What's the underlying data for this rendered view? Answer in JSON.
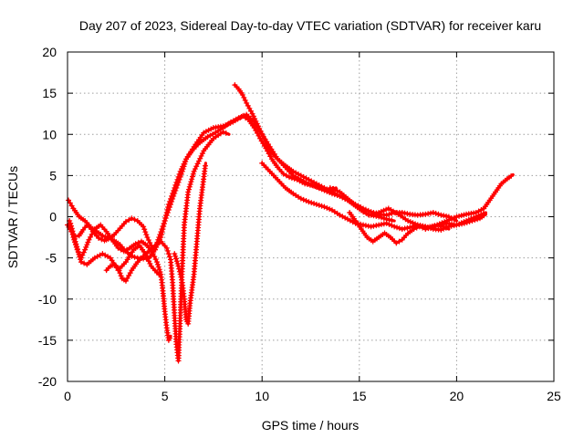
{
  "chart_data": {
    "type": "scatter",
    "title": "Day 207 of 2023, Sidereal Day-to-day VTEC variation (SDTVAR) for receiver karu",
    "xlabel": "GPS time / hours",
    "ylabel": "SDTVAR / TECUs",
    "xlim": [
      0,
      25
    ],
    "ylim": [
      -20,
      20
    ],
    "xticks": [
      0,
      5,
      10,
      15,
      20,
      25
    ],
    "yticks": [
      -20,
      -15,
      -10,
      -5,
      0,
      5,
      10,
      15,
      20
    ],
    "grid": true,
    "marker": "+",
    "color": "#ff0000",
    "series": [
      {
        "name": "series-1",
        "x": [
          0,
          0.2,
          0.4,
          0.6,
          0.8,
          1.0,
          1.2,
          1.5,
          1.8,
          2.1,
          2.4,
          2.7,
          3.0,
          3.3,
          3.6,
          3.9,
          4.2,
          4.5,
          4.7,
          5.0,
          5.2,
          5.5,
          5.8,
          6.1,
          6.5,
          7.0,
          7.5,
          8.0,
          8.5,
          9.0,
          9.3,
          9.6,
          9.9,
          10.2,
          10.5,
          10.8,
          11.1,
          11.4,
          11.8,
          12.2,
          12.6,
          13.0,
          13.4,
          13.8
        ],
        "y": [
          -1.0,
          -1.8,
          -2.4,
          -2.3,
          -1.6,
          -1.0,
          -1.3,
          -1.8,
          -2.3,
          -2.6,
          -2.9,
          -3.4,
          -4.2,
          -4.8,
          -5.0,
          -5.1,
          -5.0,
          -4.0,
          -2.5,
          -0.5,
          1.5,
          3.5,
          5.5,
          7.0,
          8.5,
          10.2,
          10.8,
          11.0,
          11.5,
          12.2,
          11.8,
          10.8,
          9.5,
          8.3,
          7.0,
          6.0,
          5.2,
          4.8,
          4.5,
          4.0,
          3.8,
          3.5,
          3.2,
          3.5
        ]
      },
      {
        "name": "series-2",
        "x": [
          0.05,
          0.3,
          0.6,
          0.9,
          1.1,
          1.3,
          1.6,
          1.9,
          2.1,
          2.4,
          2.7,
          3.0,
          3.3,
          3.6,
          3.9,
          4.1,
          4.3,
          4.5,
          4.8,
          5.0,
          5.3,
          5.6,
          5.9,
          6.1,
          6.4,
          6.8,
          7.2,
          7.6,
          8.0,
          8.4,
          8.8,
          9.2,
          9.6,
          10.0,
          10.4,
          10.8,
          11.2,
          11.6,
          12.0,
          12.4,
          12.8,
          13.2,
          13.6,
          14.0,
          14.4,
          14.8,
          15.2,
          15.6,
          16.0,
          16.4,
          16.8
        ],
        "y": [
          2.0,
          1.0,
          0,
          -0.5,
          -1.0,
          -1.8,
          -2.6,
          -2.9,
          -2.7,
          -2.2,
          -1.4,
          -0.6,
          -0.2,
          -0.5,
          -1.2,
          -2.5,
          -3.5,
          -4.0,
          -2.5,
          -0.5,
          1.5,
          3.5,
          5.5,
          7.0,
          8.0,
          9.0,
          9.7,
          10.2,
          10.8,
          11.5,
          12.0,
          12.4,
          11.5,
          10.0,
          8.5,
          7.0,
          6.0,
          5.0,
          4.5,
          4.0,
          3.6,
          3.2,
          2.8,
          2.5,
          2.0,
          1.3,
          0.6,
          0.2,
          0,
          -0.3,
          -0.5
        ]
      },
      {
        "name": "series-3",
        "x": [
          0.1,
          0.3,
          0.5,
          0.7,
          0.9,
          1.1,
          1.4,
          1.7,
          2.0,
          2.3,
          2.6,
          2.9,
          3.2,
          3.5,
          3.8,
          4.1,
          4.4,
          4.6,
          4.8,
          4.9,
          5.0,
          5.1,
          5.2,
          5.3
        ],
        "y": [
          -0.5,
          -2.5,
          -4.0,
          -5.0,
          -4.0,
          -2.8,
          -1.5,
          -1.0,
          -1.8,
          -2.8,
          -3.8,
          -4.2,
          -3.8,
          -3.3,
          -3.0,
          -3.5,
          -4.5,
          -5.5,
          -7.0,
          -9.0,
          -11.5,
          -13.5,
          -15.0,
          -14.5
        ]
      },
      {
        "name": "series-4",
        "x": [
          0.15,
          0.4,
          0.7,
          1.0,
          1.4,
          1.8,
          2.2,
          2.6,
          3.0,
          3.4,
          3.7,
          4.0,
          4.3,
          4.6,
          4.8
        ],
        "y": [
          -0.8,
          -3.0,
          -5.5,
          -5.8,
          -5.0,
          -4.5,
          -5.0,
          -6.5,
          -5.5,
          -4.0,
          -3.5,
          -4.5,
          -6.0,
          -6.8,
          -7.2
        ]
      },
      {
        "name": "series-5",
        "x": [
          2.0,
          2.2,
          2.4,
          2.6,
          2.8,
          3.0,
          3.3,
          3.6,
          3.9,
          4.2,
          4.5,
          4.8,
          5.1,
          5.3,
          5.4,
          5.5,
          5.6,
          5.7,
          5.8,
          5.9,
          6.0,
          6.2,
          6.5,
          7.0,
          7.5,
          8.0,
          8.3
        ],
        "y": [
          -6.5,
          -6.0,
          -5.8,
          -6.2,
          -7.5,
          -7.8,
          -6.5,
          -5.5,
          -4.8,
          -4.2,
          -3.5,
          -3.0,
          -3.8,
          -5.2,
          -8.0,
          -12.0,
          -15.5,
          -17.5,
          -12.0,
          -6.0,
          -1.0,
          3.0,
          5.5,
          8.0,
          9.5,
          10.3,
          10.0
        ]
      },
      {
        "name": "series-6",
        "x": [
          5.5,
          5.7,
          5.9,
          6.0,
          6.1,
          6.2,
          6.3,
          6.5,
          6.8,
          7.1
        ],
        "y": [
          -4.5,
          -6.0,
          -8.0,
          -10.0,
          -12.5,
          -13.0,
          -10.5,
          -7.0,
          1.0,
          6.5
        ]
      },
      {
        "name": "series-7",
        "x": [
          8.6,
          8.8,
          9.0,
          9.2,
          9.5,
          9.8,
          10.1,
          10.4,
          10.8,
          11.2,
          11.6,
          12.0,
          12.4,
          12.8,
          13.2,
          13.6,
          14.0,
          14.4,
          14.8,
          15.2,
          15.6,
          16.0,
          16.4,
          16.8,
          17.2,
          17.6,
          18.0,
          18.4,
          18.8,
          19.2,
          19.6,
          20.0
        ],
        "y": [
          16.0,
          15.5,
          14.8,
          13.8,
          12.5,
          11.0,
          9.5,
          8.0,
          7.0,
          6.2,
          5.5,
          5.0,
          4.5,
          4.0,
          3.5,
          3.0,
          2.5,
          2.0,
          1.5,
          1.0,
          0.6,
          0.3,
          0.2,
          0.5,
          0.5,
          0.3,
          0.2,
          0.3,
          0.5,
          0.2,
          0,
          -0.5
        ]
      },
      {
        "name": "series-8",
        "x": [
          10.0,
          10.4,
          10.8,
          11.2,
          11.6,
          12.0,
          12.4,
          12.8,
          13.2,
          13.6,
          14.0,
          14.4,
          14.8,
          15.2,
          15.6,
          16.0,
          16.4,
          16.8,
          17.2,
          17.6,
          18.0,
          18.4,
          18.8,
          19.2,
          19.6,
          20.0,
          20.4,
          20.8,
          21.2,
          21.5
        ],
        "y": [
          6.5,
          5.5,
          4.5,
          3.5,
          2.8,
          2.2,
          1.8,
          1.5,
          1.2,
          0.8,
          0.2,
          -0.3,
          -0.8,
          -1.0,
          -1.2,
          -1.0,
          -0.8,
          -1.2,
          -1.5,
          -1.3,
          -1.0,
          -1.2,
          -1.5,
          -1.6,
          -1.2,
          -1.0,
          -0.8,
          -0.5,
          -0.2,
          0.3
        ]
      },
      {
        "name": "series-9",
        "x": [
          14.5,
          14.8,
          15.1,
          15.4,
          15.7,
          16.0,
          16.3,
          16.6,
          16.9,
          17.2,
          17.5,
          17.8,
          18.1,
          18.4,
          18.7,
          19.0,
          19.3,
          19.6
        ],
        "y": [
          0.5,
          -0.5,
          -1.5,
          -2.5,
          -3.0,
          -2.5,
          -2.0,
          -2.5,
          -3.2,
          -2.8,
          -2.0,
          -1.5,
          -1.2,
          -1.5,
          -1.3,
          -1.0,
          -1.2,
          -1.5
        ]
      },
      {
        "name": "series-10",
        "x": [
          19.0,
          19.5,
          20.0,
          20.5,
          21.0,
          21.4,
          21.7,
          22.0,
          22.3,
          22.6,
          22.9
        ],
        "y": [
          -1.0,
          -0.5,
          0,
          0.3,
          0.5,
          1.0,
          2.0,
          3.0,
          4.0,
          4.6,
          5.1
        ]
      },
      {
        "name": "series-11",
        "x": [
          13.5,
          14.0,
          14.5,
          15.0,
          15.5,
          16.0,
          16.5,
          17.0,
          17.5,
          18.0,
          18.5,
          19.0,
          19.5,
          20.0,
          20.5,
          21.0,
          21.5
        ],
        "y": [
          3.5,
          3.0,
          2.0,
          1.0,
          0.2,
          0.5,
          1.0,
          0.3,
          -0.5,
          -1.0,
          -1.3,
          -1.0,
          -0.8,
          -1.0,
          -0.5,
          0,
          0.5
        ]
      }
    ]
  }
}
